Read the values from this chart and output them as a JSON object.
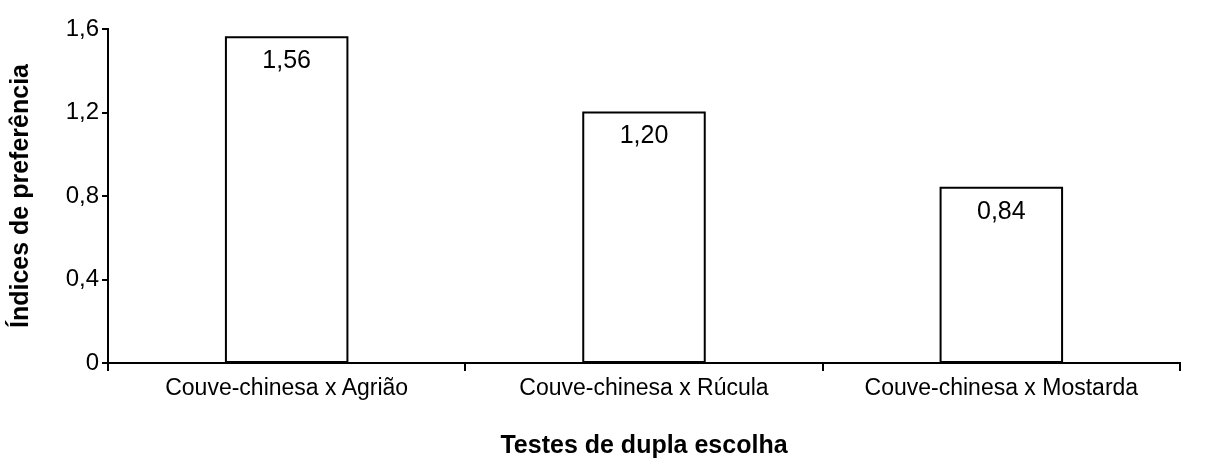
{
  "chart_data": {
    "type": "bar",
    "xlabel": "Testes de dupla escolha",
    "ylabel": "Índices de preferência",
    "categories": [
      "Couve-chinesa x Agrião",
      "Couve-chinesa x Rúcula",
      "Couve-chinesa x Mostarda"
    ],
    "values": [
      1.56,
      1.2,
      0.84
    ],
    "value_labels": [
      "1,56",
      "1,20",
      "0,84"
    ],
    "color": "#ffffff",
    "ylim": [
      0,
      1.6
    ],
    "yticks": [
      0,
      {
        "value": 0.4,
        "label": "0,4"
      },
      {
        "value": 0.8,
        "label": "0,8"
      },
      {
        "value": 1.2,
        "label": "1,2"
      },
      {
        "value": 1.6,
        "label": "1,6"
      }
    ]
  }
}
